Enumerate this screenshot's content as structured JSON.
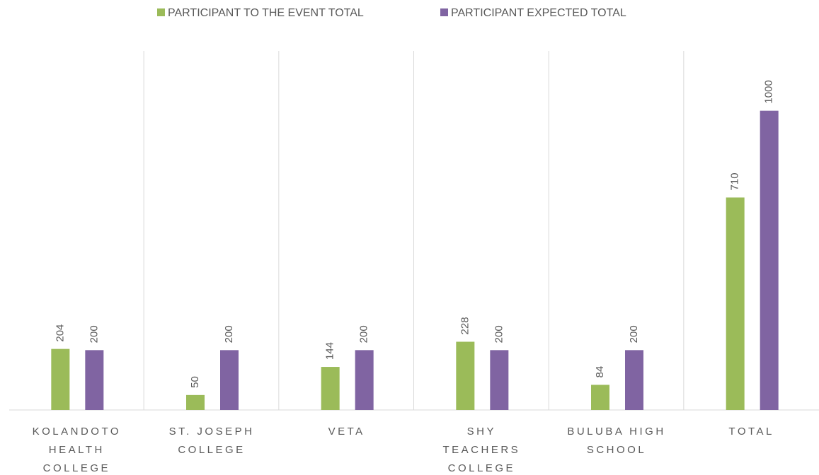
{
  "chart_data": {
    "type": "bar",
    "categories": [
      "KOLANDOTO HEALTH COLLEGE",
      "ST. JOSEPH COLLEGE",
      "VETA",
      "SHY TEACHERS COLLEGE",
      "BULUBA HIGH SCHOOL",
      "TOTAL"
    ],
    "series": [
      {
        "name": "PARTICIPANT TO THE EVENT TOTAL",
        "color": "#9bbb59",
        "values": [
          204,
          50,
          144,
          228,
          84,
          710
        ]
      },
      {
        "name": "PARTICIPANT EXPECTED TOTAL",
        "color": "#8064a2",
        "values": [
          200,
          200,
          200,
          200,
          200,
          1000
        ]
      }
    ],
    "ylim": [
      0,
      1200
    ],
    "legend": "top"
  }
}
